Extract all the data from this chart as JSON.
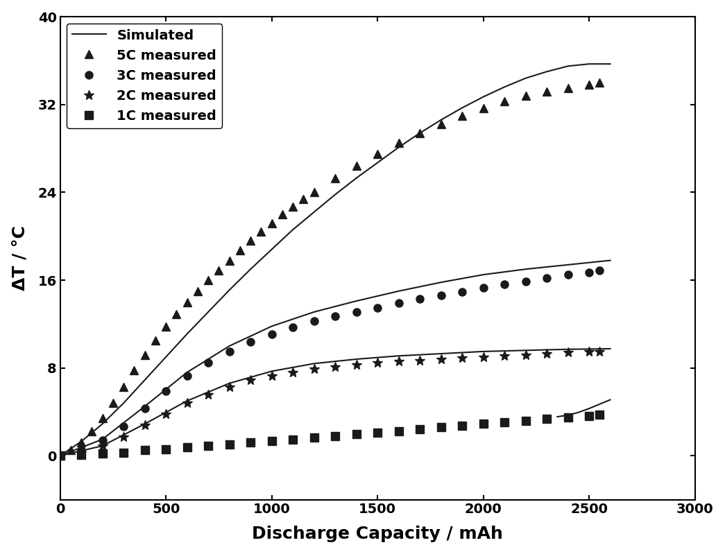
{
  "title": "",
  "xlabel": "Discharge Capacity / mAh",
  "ylabel": "ΔT / °C",
  "xlim": [
    0,
    3000
  ],
  "ylim": [
    -4,
    40
  ],
  "xticks": [
    0,
    500,
    1000,
    1500,
    2000,
    2500,
    3000
  ],
  "yticks": [
    0,
    8,
    16,
    24,
    32,
    40
  ],
  "background_color": "#ffffff",
  "color": "#1a1a1a",
  "lw": 1.5,
  "legend_fontsize": 14,
  "axis_label_fontsize": 18,
  "tick_fontsize": 14,
  "x5_meas": [
    0,
    50,
    100,
    150,
    200,
    250,
    300,
    350,
    400,
    450,
    500,
    550,
    600,
    650,
    700,
    750,
    800,
    850,
    900,
    950,
    1000,
    1050,
    1100,
    1150,
    1200,
    1300,
    1400,
    1500,
    1600,
    1700,
    1800,
    1900,
    2000,
    2100,
    2200,
    2300,
    2400,
    2500,
    2550
  ],
  "y5_meas": [
    0,
    0.5,
    1.2,
    2.2,
    3.4,
    4.8,
    6.3,
    7.8,
    9.2,
    10.5,
    11.8,
    12.9,
    14.0,
    15.0,
    16.0,
    16.9,
    17.8,
    18.7,
    19.6,
    20.4,
    21.2,
    22.0,
    22.7,
    23.4,
    24.0,
    25.3,
    26.4,
    27.5,
    28.5,
    29.4,
    30.2,
    31.0,
    31.7,
    32.3,
    32.8,
    33.2,
    33.5,
    33.8,
    34.0
  ],
  "x5_sim": [
    0,
    100,
    200,
    300,
    400,
    500,
    600,
    700,
    800,
    900,
    1000,
    1100,
    1200,
    1300,
    1400,
    1500,
    1600,
    1700,
    1800,
    1900,
    2000,
    2100,
    2200,
    2300,
    2400,
    2500,
    2600
  ],
  "y5_sim": [
    0,
    1.3,
    2.9,
    4.8,
    6.9,
    9.0,
    11.1,
    13.1,
    15.1,
    17.0,
    18.8,
    20.6,
    22.2,
    23.8,
    25.3,
    26.7,
    28.1,
    29.4,
    30.6,
    31.7,
    32.7,
    33.6,
    34.4,
    35.0,
    35.5,
    35.7,
    35.7
  ],
  "x3_meas": [
    0,
    100,
    200,
    300,
    400,
    500,
    600,
    700,
    800,
    900,
    1000,
    1100,
    1200,
    1300,
    1400,
    1500,
    1600,
    1700,
    1800,
    1900,
    2000,
    2100,
    2200,
    2300,
    2400,
    2500,
    2550
  ],
  "y3_meas": [
    0,
    0.5,
    1.4,
    2.7,
    4.3,
    5.9,
    7.3,
    8.5,
    9.5,
    10.4,
    11.1,
    11.7,
    12.3,
    12.7,
    13.1,
    13.5,
    13.9,
    14.3,
    14.6,
    14.9,
    15.3,
    15.6,
    15.9,
    16.2,
    16.5,
    16.7,
    16.9
  ],
  "x3_sim": [
    0,
    200,
    400,
    600,
    800,
    1000,
    1200,
    1400,
    1600,
    1800,
    2000,
    2200,
    2400,
    2600
  ],
  "y3_sim": [
    0,
    1.5,
    4.5,
    7.6,
    10.0,
    11.8,
    13.1,
    14.1,
    15.0,
    15.8,
    16.5,
    17.0,
    17.4,
    17.8
  ],
  "x2_meas": [
    0,
    100,
    200,
    300,
    400,
    500,
    600,
    700,
    800,
    900,
    1000,
    1100,
    1200,
    1300,
    1400,
    1500,
    1600,
    1700,
    1800,
    1900,
    2000,
    2100,
    2200,
    2300,
    2400,
    2500,
    2550
  ],
  "y2_meas": [
    0,
    0.3,
    0.9,
    1.7,
    2.8,
    3.8,
    4.8,
    5.6,
    6.3,
    6.9,
    7.3,
    7.6,
    7.9,
    8.1,
    8.3,
    8.5,
    8.6,
    8.7,
    8.8,
    8.9,
    9.0,
    9.1,
    9.2,
    9.3,
    9.4,
    9.5,
    9.5
  ],
  "x2_sim": [
    0,
    200,
    400,
    600,
    800,
    1000,
    1200,
    1400,
    1600,
    1800,
    2000,
    2200,
    2400,
    2600
  ],
  "y2_sim": [
    0,
    0.9,
    2.9,
    5.0,
    6.6,
    7.7,
    8.4,
    8.8,
    9.1,
    9.3,
    9.5,
    9.6,
    9.7,
    9.75
  ],
  "x1_meas": [
    0,
    100,
    200,
    300,
    400,
    500,
    600,
    700,
    800,
    900,
    1000,
    1100,
    1200,
    1300,
    1400,
    1500,
    1600,
    1700,
    1800,
    1900,
    2000,
    2100,
    2200,
    2300,
    2400,
    2500,
    2550
  ],
  "y1_meas": [
    0,
    0.1,
    0.2,
    0.3,
    0.5,
    0.6,
    0.75,
    0.9,
    1.05,
    1.2,
    1.35,
    1.5,
    1.65,
    1.8,
    1.95,
    2.1,
    2.25,
    2.4,
    2.6,
    2.75,
    2.9,
    3.05,
    3.2,
    3.35,
    3.5,
    3.65,
    3.75
  ],
  "x1_sim": [
    2350,
    2400,
    2450,
    2500,
    2550,
    2600
  ],
  "y1_sim": [
    3.55,
    3.7,
    3.95,
    4.3,
    4.7,
    5.1
  ]
}
